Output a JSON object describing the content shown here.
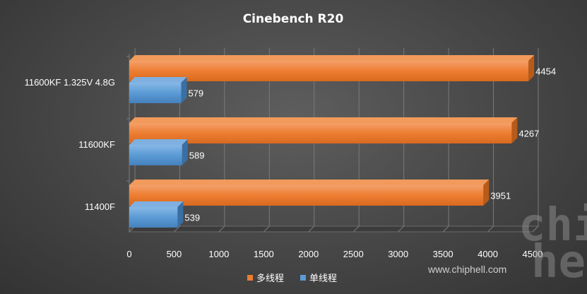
{
  "chart_data": {
    "type": "bar",
    "orientation": "horizontal",
    "title": "Cinebench  R20",
    "categories": [
      "11600KF 1.325V 4.8G",
      "11600KF",
      "11400F"
    ],
    "series": [
      {
        "name": "多线程",
        "values": [
          4454,
          4267,
          3951
        ],
        "color": "#ED7D31"
      },
      {
        "name": "单线程",
        "values": [
          579,
          589,
          539
        ],
        "color": "#5B9BD5"
      }
    ],
    "xlim": [
      0,
      4500
    ],
    "xticks": [
      "0",
      "500",
      "1000",
      "1500",
      "2000",
      "2500",
      "3000",
      "3500",
      "4000",
      "4500"
    ],
    "grid": true,
    "legend_position": "bottom"
  },
  "watermark": {
    "url": "www.chiphell.com",
    "logo_text": "chip hell"
  }
}
